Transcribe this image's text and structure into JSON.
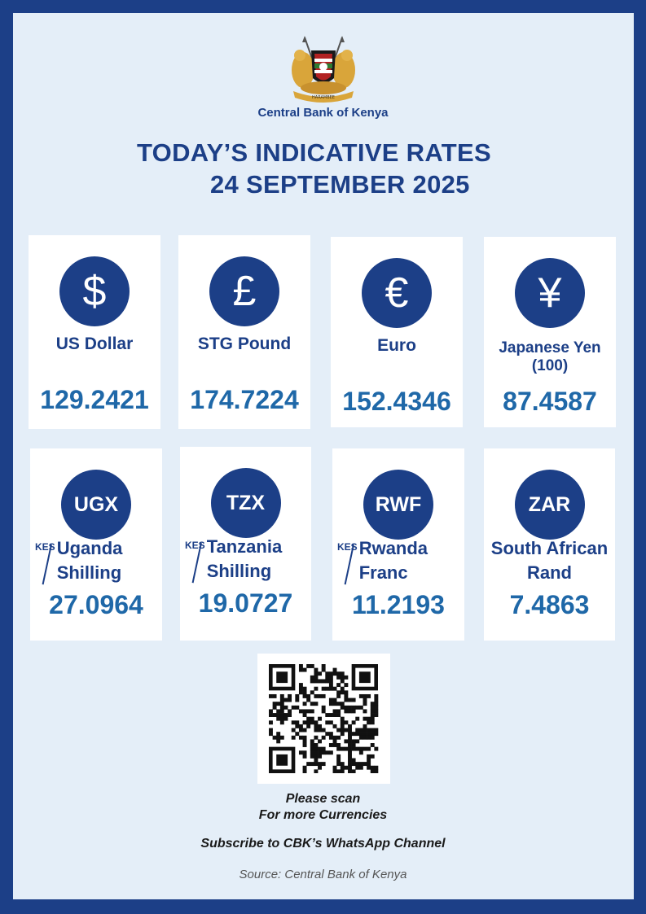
{
  "header": {
    "bank_name": "Central Bank of Kenya",
    "headline_line1": "TODAY’S INDICATIVE RATES",
    "headline_line2": "24 SEPTEMBER 2025",
    "crest_icon": "kenya-coat-of-arms-icon",
    "crest_text": "HARAMBEE"
  },
  "currencies": [
    {
      "symbol": "$",
      "name": "US Dollar",
      "rate": "129.2421",
      "icon": "dollar-icon"
    },
    {
      "symbol": "£",
      "name": "STG Pound",
      "rate": "174.7224",
      "icon": "pound-icon"
    },
    {
      "symbol": "€",
      "name": "Euro",
      "rate": "152.4346",
      "icon": "euro-icon"
    },
    {
      "symbol": "¥",
      "name_line1": "Japanese Yen",
      "name_line2": "(100)",
      "rate": "87.4587",
      "icon": "yen-icon"
    },
    {
      "code": "UGX",
      "kes": "KES",
      "name_line1": "Uganda",
      "name_line2": "Shilling",
      "rate": "27.0964"
    },
    {
      "code": "TZX",
      "kes": "KES",
      "name_line1": "Tanzania",
      "name_line2": "Shilling",
      "rate": "19.0727"
    },
    {
      "code": "RWF",
      "kes": "KES",
      "name_line1": "Rwanda",
      "name_line2": "Franc",
      "rate": "11.2193"
    },
    {
      "code": "ZAR",
      "name_line1": "South African",
      "name_line2": "Rand",
      "rate": "7.4863"
    }
  ],
  "footer": {
    "scan_line1": "Please scan",
    "scan_line2": "For more Currencies",
    "subscribe": "Subscribe to CBK’s WhatsApp Channel",
    "source": "Source: Central Bank of Kenya"
  },
  "colors": {
    "brand_navy": "#1c3f87",
    "rate_blue": "#1f68a8",
    "background": "#e4eef8",
    "crest_gold": "#d9a53a"
  }
}
